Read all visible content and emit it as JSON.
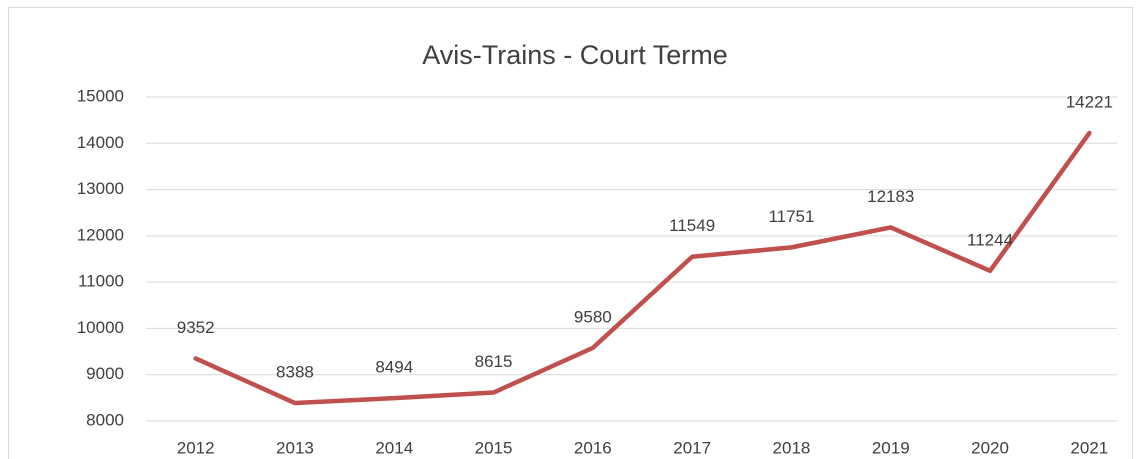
{
  "chart_data": {
    "type": "line",
    "title": "Avis-Trains - Court Terme",
    "categories": [
      "2012",
      "2013",
      "2014",
      "2015",
      "2016",
      "2017",
      "2018",
      "2019",
      "2020",
      "2021"
    ],
    "series": [
      {
        "name": "Avis-Trains",
        "color": "#c0504d",
        "values": [
          9352,
          8388,
          8494,
          8615,
          9580,
          11549,
          11751,
          12183,
          11244,
          14221
        ]
      }
    ],
    "ylim": [
      8000,
      15000
    ],
    "yticks": [
      8000,
      9000,
      10000,
      11000,
      12000,
      13000,
      14000,
      15000
    ],
    "grid": true
  }
}
